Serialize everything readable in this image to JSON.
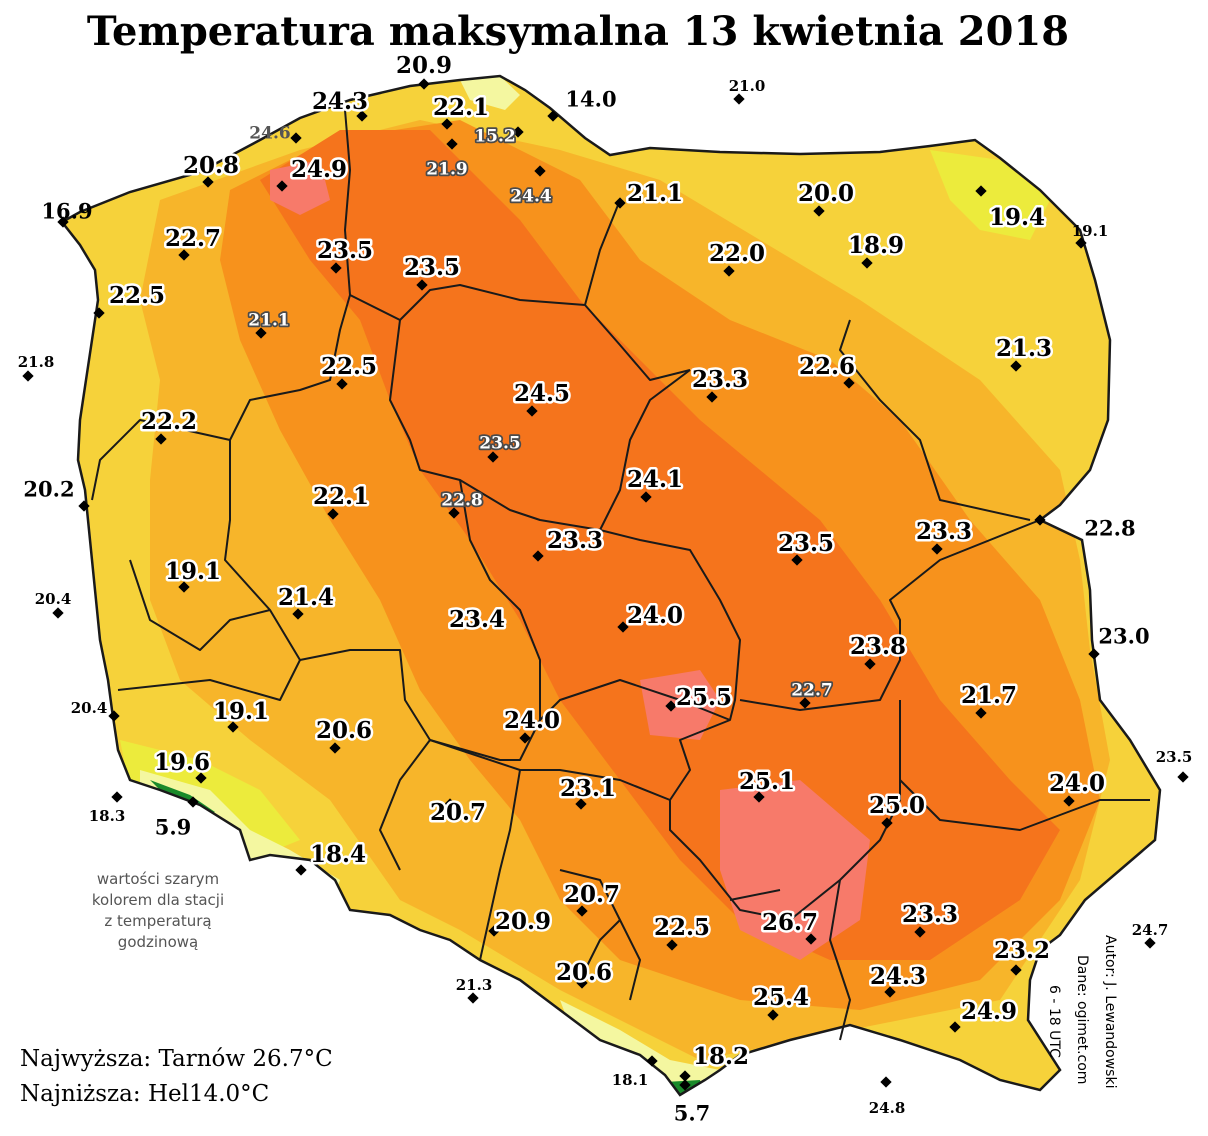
{
  "title": "Temperatura maksymalna 13 kwietnia 2018",
  "extremes": {
    "max": "Najwyższa: Tarnów 26.7°C",
    "min": "Najniższa: Hel14.0°C"
  },
  "note": [
    "wartości szarym",
    "kolorem dla stacji",
    "z temperaturą",
    "godzinową"
  ],
  "credits": [
    "Autor: J. Lewandowski",
    "Dane: ogimet.com",
    "6 - 18 UTC"
  ],
  "colors": {
    "very_hot": "#f77a6a",
    "hot": "#f5741c",
    "warm": "#f7921c",
    "mild": "#f7b52a",
    "cool": "#f6d23a",
    "cooler": "#eceb3c",
    "mountain_light": "#f4f7a0",
    "mountain_dark": "#1a8a2a",
    "border": "#1a1a1a"
  },
  "stations": [
    {
      "value": "20.9",
      "style": "lbl"
    },
    {
      "value": "24.3",
      "style": "lbl"
    },
    {
      "value": "22.1",
      "style": "lbl"
    },
    {
      "value": "14.0",
      "style": "lbl-out"
    },
    {
      "value": "21.0",
      "style": "lbl-small-out"
    },
    {
      "value": "24.6",
      "style": "lbl-grey-out"
    },
    {
      "value": "15.2",
      "style": "lbl-grey"
    },
    {
      "value": "21.9",
      "style": "lbl-grey"
    },
    {
      "value": "24.9",
      "style": "lbl"
    },
    {
      "value": "20.8",
      "style": "lbl"
    },
    {
      "value": "24.4",
      "style": "lbl-grey"
    },
    {
      "value": "21.1",
      "style": "lbl"
    },
    {
      "value": "20.0",
      "style": "lbl"
    },
    {
      "value": "16.9",
      "style": "lbl-out"
    },
    {
      "value": "19.4",
      "style": "lbl"
    },
    {
      "value": "19.1",
      "style": "lbl-small-out"
    },
    {
      "value": "22.7",
      "style": "lbl"
    },
    {
      "value": "23.5",
      "style": "lbl"
    },
    {
      "value": "23.5",
      "style": "lbl"
    },
    {
      "value": "22.0",
      "style": "lbl"
    },
    {
      "value": "18.9",
      "style": "lbl"
    },
    {
      "value": "22.5",
      "style": "lbl"
    },
    {
      "value": "21.1",
      "style": "lbl-grey"
    },
    {
      "value": "21.3",
      "style": "lbl"
    },
    {
      "value": "21.8",
      "style": "lbl-small-out"
    },
    {
      "value": "22.5",
      "style": "lbl"
    },
    {
      "value": "23.3",
      "style": "lbl"
    },
    {
      "value": "22.6",
      "style": "lbl"
    },
    {
      "value": "24.5",
      "style": "lbl"
    },
    {
      "value": "22.2",
      "style": "lbl"
    },
    {
      "value": "23.5",
      "style": "lbl-grey"
    },
    {
      "value": "24.1",
      "style": "lbl"
    },
    {
      "value": "20.2",
      "style": "lbl-out"
    },
    {
      "value": "22.1",
      "style": "lbl"
    },
    {
      "value": "22.8",
      "style": "lbl-grey"
    },
    {
      "value": "23.3",
      "style": "lbl"
    },
    {
      "value": "23.5",
      "style": "lbl"
    },
    {
      "value": "23.3",
      "style": "lbl"
    },
    {
      "value": "22.8",
      "style": "lbl-out"
    },
    {
      "value": "19.1",
      "style": "lbl"
    },
    {
      "value": "20.4",
      "style": "lbl-small-out"
    },
    {
      "value": "21.4",
      "style": "lbl"
    },
    {
      "value": "23.4",
      "style": "lbl"
    },
    {
      "value": "24.0",
      "style": "lbl"
    },
    {
      "value": "23.0",
      "style": "lbl-out"
    },
    {
      "value": "23.8",
      "style": "lbl"
    },
    {
      "value": "20.4",
      "style": "lbl-small-out"
    },
    {
      "value": "19.1",
      "style": "lbl"
    },
    {
      "value": "25.5",
      "style": "lbl"
    },
    {
      "value": "22.7",
      "style": "lbl-grey"
    },
    {
      "value": "21.7",
      "style": "lbl"
    },
    {
      "value": "20.6",
      "style": "lbl"
    },
    {
      "value": "24.0",
      "style": "lbl"
    },
    {
      "value": "19.6",
      "style": "lbl"
    },
    {
      "value": "23.5",
      "style": "lbl-small-out"
    },
    {
      "value": "23.1",
      "style": "lbl"
    },
    {
      "value": "25.1",
      "style": "lbl"
    },
    {
      "value": "25.0",
      "style": "lbl"
    },
    {
      "value": "24.0",
      "style": "lbl"
    },
    {
      "value": "18.3",
      "style": "lbl-small-out"
    },
    {
      "value": "5.9",
      "style": "lbl-out"
    },
    {
      "value": "20.7",
      "style": "lbl"
    },
    {
      "value": "18.4",
      "style": "lbl"
    },
    {
      "value": "20.7",
      "style": "lbl"
    },
    {
      "value": "20.9",
      "style": "lbl"
    },
    {
      "value": "22.5",
      "style": "lbl"
    },
    {
      "value": "26.7",
      "style": "lbl"
    },
    {
      "value": "23.3",
      "style": "lbl"
    },
    {
      "value": "24.7",
      "style": "lbl-small-out"
    },
    {
      "value": "23.2",
      "style": "lbl"
    },
    {
      "value": "20.6",
      "style": "lbl"
    },
    {
      "value": "24.3",
      "style": "lbl"
    },
    {
      "value": "21.3",
      "style": "lbl-small-out"
    },
    {
      "value": "25.4",
      "style": "lbl"
    },
    {
      "value": "24.9",
      "style": "lbl"
    },
    {
      "value": "18.2",
      "style": "lbl"
    },
    {
      "value": "18.1",
      "style": "lbl-small-out"
    },
    {
      "value": "5.7",
      "style": "lbl-out"
    },
    {
      "value": "24.8",
      "style": "lbl-small-out"
    }
  ]
}
